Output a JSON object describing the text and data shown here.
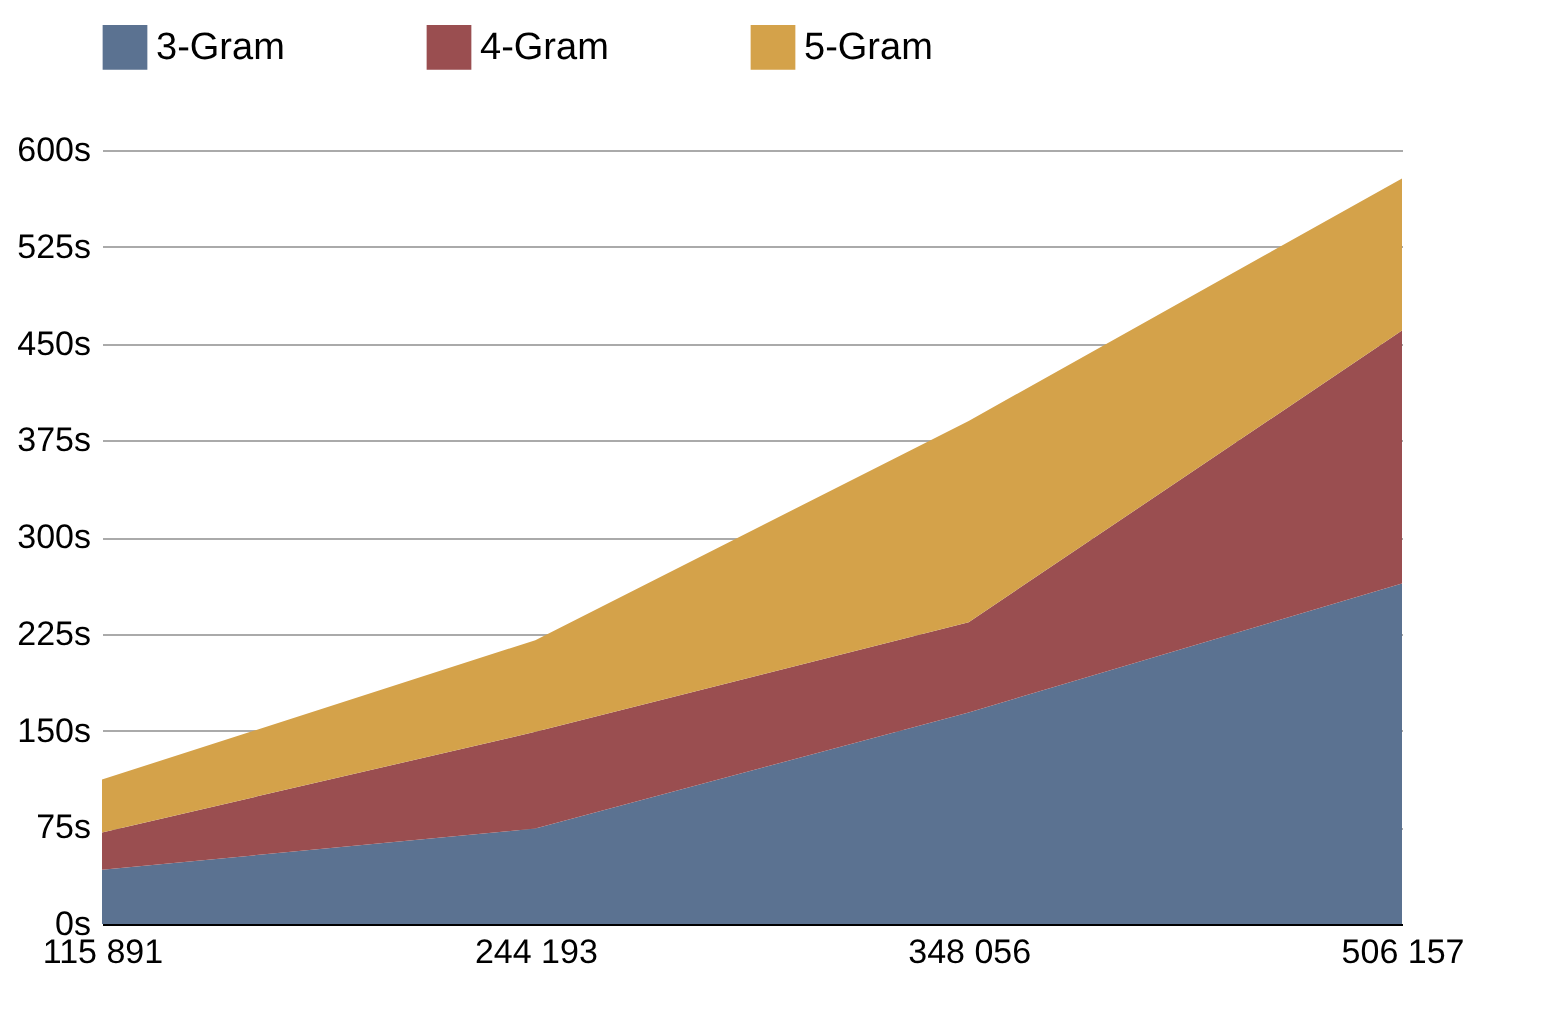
{
  "chart_data": {
    "type": "area",
    "stacked": true,
    "categories": [
      "115 891",
      "244 193",
      "348 056",
      "506 157"
    ],
    "series": [
      {
        "name": "3-Gram",
        "color": "#5b7291",
        "values": [
          42,
          74,
          164,
          264
        ]
      },
      {
        "name": "4-Gram",
        "color": "#9a4e50",
        "values": [
          29,
          75,
          70,
          196
        ]
      },
      {
        "name": "5-Gram",
        "color": "#d4a24a",
        "values": [
          41,
          71,
          156,
          118
        ]
      }
    ],
    "ylim": [
      0,
      600
    ],
    "yticks": [
      {
        "value": 0,
        "label": "0s"
      },
      {
        "value": 75,
        "label": "75s"
      },
      {
        "value": 150,
        "label": "150s"
      },
      {
        "value": 225,
        "label": "225s"
      },
      {
        "value": 300,
        "label": "300s"
      },
      {
        "value": 375,
        "label": "375s"
      },
      {
        "value": 450,
        "label": "450s"
      },
      {
        "value": 525,
        "label": "525s"
      },
      {
        "value": 600,
        "label": "600s"
      }
    ],
    "grid": "y",
    "legend": "top"
  }
}
